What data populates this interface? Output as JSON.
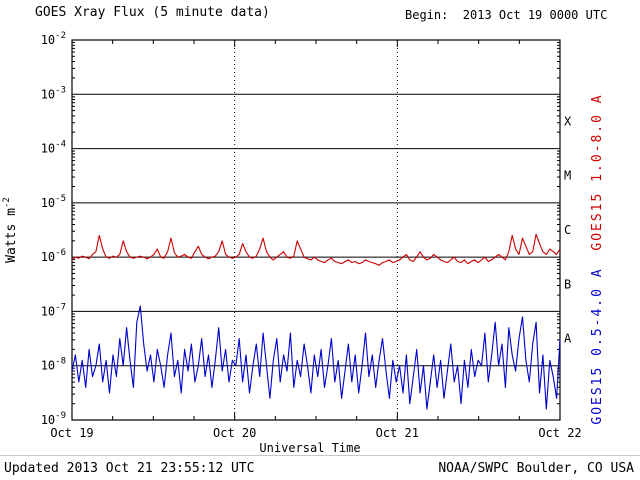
{
  "header": {
    "title": "GOES Xray Flux (5 minute data)",
    "begin_label": "Begin:  2013 Oct 19 0000 UTC"
  },
  "footer": {
    "updated": "Updated 2013 Oct 21 23:55:12 UTC",
    "credit": "NOAA/SWPC Boulder, CO USA"
  },
  "chart_data": {
    "type": "line",
    "title": "GOES Xray Flux (5 minute data)",
    "begin": "2013 Oct 19 0000 UTC",
    "updated": "2013 Oct 21 23:55:12 UTC",
    "xlabel": "Universal Time",
    "ylabel": {
      "base": "Watts m",
      "exp": "-2"
    },
    "x_hours_range": [
      0,
      72
    ],
    "xticks": [
      {
        "hour": 0,
        "label": "Oct 19"
      },
      {
        "hour": 24,
        "label": "Oct 20"
      },
      {
        "hour": 48,
        "label": "Oct 21"
      },
      {
        "hour": 72,
        "label": "Oct 22"
      }
    ],
    "y_log_range": [
      -9,
      -2
    ],
    "ytick_exponents": [
      -2,
      -3,
      -4,
      -5,
      -6,
      -7,
      -8,
      -9
    ],
    "grid": {
      "horizontal": "solid-decades",
      "vertical": "dotted-day-boundaries"
    },
    "flare_classes": [
      {
        "label": "X",
        "between": [
          -4,
          -3
        ]
      },
      {
        "label": "M",
        "between": [
          -5,
          -4
        ]
      },
      {
        "label": "C",
        "between": [
          -6,
          -5
        ]
      },
      {
        "label": "B",
        "between": [
          -7,
          -6
        ]
      },
      {
        "label": "A",
        "between": [
          -8,
          -7
        ]
      }
    ],
    "legend_position": "right-rotated",
    "colors": {
      "long_band": "#cc0000",
      "short_band": "#0000cc",
      "axis": "#000000"
    },
    "series": [
      {
        "name": "GOES15 1.0-8.0 A",
        "color": "#cc0000",
        "log10_values": [
          -6.05,
          -6.0,
          -6.02,
          -5.98,
          -6.0,
          -6.03,
          -5.95,
          -5.9,
          -5.6,
          -5.85,
          -6.0,
          -6.02,
          -5.98,
          -6.0,
          -5.95,
          -5.7,
          -5.9,
          -6.0,
          -6.02,
          -6.0,
          -5.98,
          -6.0,
          -6.03,
          -6.0,
          -5.95,
          -5.85,
          -6.0,
          -6.02,
          -5.9,
          -5.65,
          -5.92,
          -6.0,
          -5.98,
          -5.95,
          -6.0,
          -6.02,
          -5.9,
          -5.8,
          -5.95,
          -6.0,
          -6.03,
          -6.0,
          -5.98,
          -5.9,
          -5.7,
          -5.95,
          -6.0,
          -6.02,
          -6.0,
          -5.95,
          -5.75,
          -5.9,
          -6.0,
          -6.02,
          -5.98,
          -5.85,
          -5.65,
          -5.9,
          -6.0,
          -6.05,
          -6.0,
          -5.95,
          -5.9,
          -6.0,
          -6.02,
          -5.98,
          -5.7,
          -5.85,
          -6.0,
          -6.03,
          -6.05,
          -6.0,
          -6.05,
          -6.08,
          -6.1,
          -6.05,
          -6.02,
          -6.08,
          -6.1,
          -6.12,
          -6.08,
          -6.05,
          -6.1,
          -6.08,
          -6.12,
          -6.1,
          -6.05,
          -6.08,
          -6.1,
          -6.12,
          -6.15,
          -6.1,
          -6.08,
          -6.05,
          -6.1,
          -6.08,
          -6.05,
          -6.0,
          -5.95,
          -6.05,
          -6.08,
          -6.0,
          -5.9,
          -6.0,
          -6.05,
          -6.02,
          -5.95,
          -6.0,
          -6.05,
          -6.08,
          -6.1,
          -6.05,
          -6.0,
          -6.08,
          -6.1,
          -6.05,
          -6.12,
          -6.08,
          -6.05,
          -6.1,
          -6.05,
          -6.0,
          -6.08,
          -6.05,
          -6.0,
          -5.95,
          -6.0,
          -6.05,
          -5.9,
          -5.6,
          -5.85,
          -5.95,
          -5.65,
          -5.8,
          -5.95,
          -5.9,
          -5.58,
          -5.75,
          -5.9,
          -5.95,
          -5.85,
          -5.9,
          -5.95,
          -5.85
        ]
      },
      {
        "name": "GOES15 0.5-4.0 A",
        "color": "#0000cc",
        "log10_values": [
          -8.1,
          -7.8,
          -8.3,
          -7.9,
          -8.4,
          -7.7,
          -8.2,
          -8.0,
          -7.6,
          -8.3,
          -7.9,
          -8.5,
          -7.8,
          -8.2,
          -7.5,
          -8.0,
          -7.3,
          -7.9,
          -8.4,
          -7.2,
          -6.9,
          -7.6,
          -8.1,
          -7.8,
          -8.3,
          -7.7,
          -8.0,
          -8.4,
          -7.8,
          -7.4,
          -8.2,
          -7.9,
          -8.5,
          -7.7,
          -8.1,
          -7.6,
          -8.3,
          -8.0,
          -7.5,
          -8.2,
          -7.8,
          -8.4,
          -7.9,
          -7.3,
          -8.1,
          -7.7,
          -8.3,
          -7.9,
          -8.0,
          -7.5,
          -8.3,
          -7.8,
          -8.5,
          -8.0,
          -7.6,
          -8.2,
          -7.4,
          -8.0,
          -8.6,
          -7.9,
          -7.5,
          -8.3,
          -7.8,
          -8.1,
          -7.4,
          -8.4,
          -7.9,
          -8.2,
          -7.6,
          -8.0,
          -8.5,
          -7.8,
          -8.2,
          -7.7,
          -8.4,
          -8.0,
          -7.5,
          -8.3,
          -7.9,
          -8.6,
          -8.1,
          -7.6,
          -8.3,
          -7.8,
          -8.5,
          -8.0,
          -7.4,
          -8.2,
          -7.8,
          -8.4,
          -7.9,
          -7.5,
          -8.1,
          -8.6,
          -7.9,
          -8.3,
          -8.0,
          -8.5,
          -7.8,
          -8.7,
          -8.2,
          -7.7,
          -8.5,
          -8.0,
          -8.8,
          -8.3,
          -7.8,
          -8.4,
          -7.9,
          -8.6,
          -8.1,
          -7.6,
          -8.3,
          -8.0,
          -8.7,
          -7.9,
          -8.4,
          -7.7,
          -8.2,
          -7.9,
          -8.0,
          -7.4,
          -8.3,
          -7.8,
          -7.2,
          -8.0,
          -7.6,
          -8.4,
          -7.3,
          -7.8,
          -8.1,
          -7.5,
          -7.1,
          -7.9,
          -8.3,
          -7.6,
          -7.2,
          -8.5,
          -7.8,
          -8.8,
          -7.9,
          -8.2,
          -8.6,
          -7.5
        ]
      }
    ]
  }
}
